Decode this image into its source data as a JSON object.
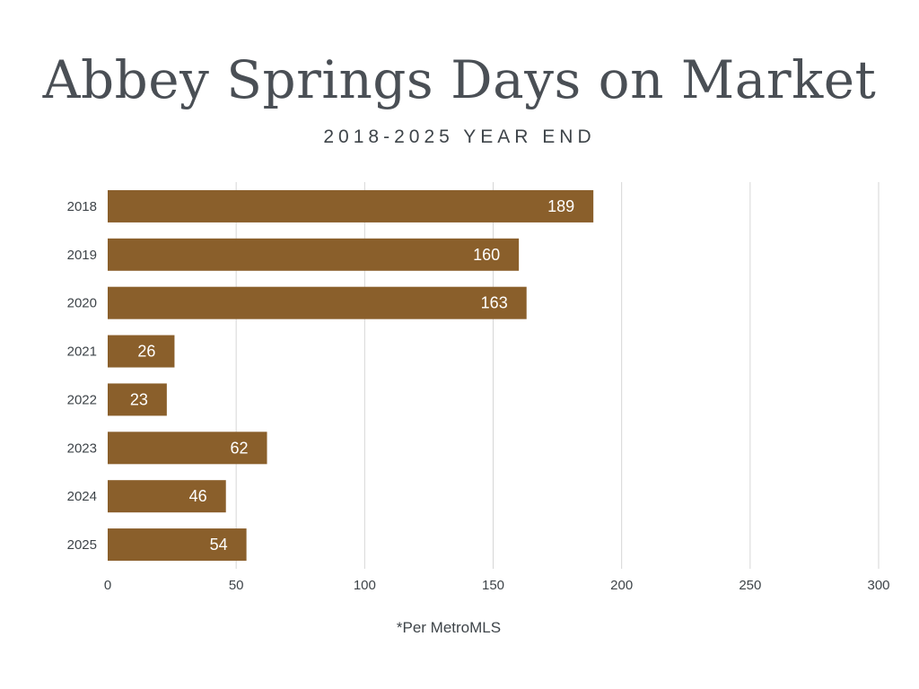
{
  "title": "Abbey Springs Days on Market",
  "subtitle": "2018-2025 YEAR END",
  "footnote": "*Per MetroMLS",
  "colors": {
    "bar": "#8a5f2b",
    "grid": "#d6d6d6",
    "text": "#3e4449",
    "label": "#ffffff"
  },
  "chart_data": {
    "type": "bar",
    "orientation": "horizontal",
    "categories": [
      "2018",
      "2019",
      "2020",
      "2021",
      "2022",
      "2023",
      "2024",
      "2025"
    ],
    "values": [
      189,
      160,
      163,
      26,
      23,
      62,
      46,
      54
    ],
    "xlim": [
      0,
      300
    ],
    "xticks": [
      0,
      50,
      100,
      150,
      200,
      250,
      300
    ],
    "xtick_labels": [
      "0",
      "50",
      "100",
      "150",
      "200",
      "250",
      "300"
    ],
    "grid": true,
    "data_labels": [
      "189",
      "160",
      "163",
      "26",
      "23",
      "62",
      "46",
      "54"
    ],
    "title": "Abbey Springs Days on Market",
    "subtitle": "2018-2025 YEAR END",
    "xlabel": "",
    "ylabel": ""
  }
}
